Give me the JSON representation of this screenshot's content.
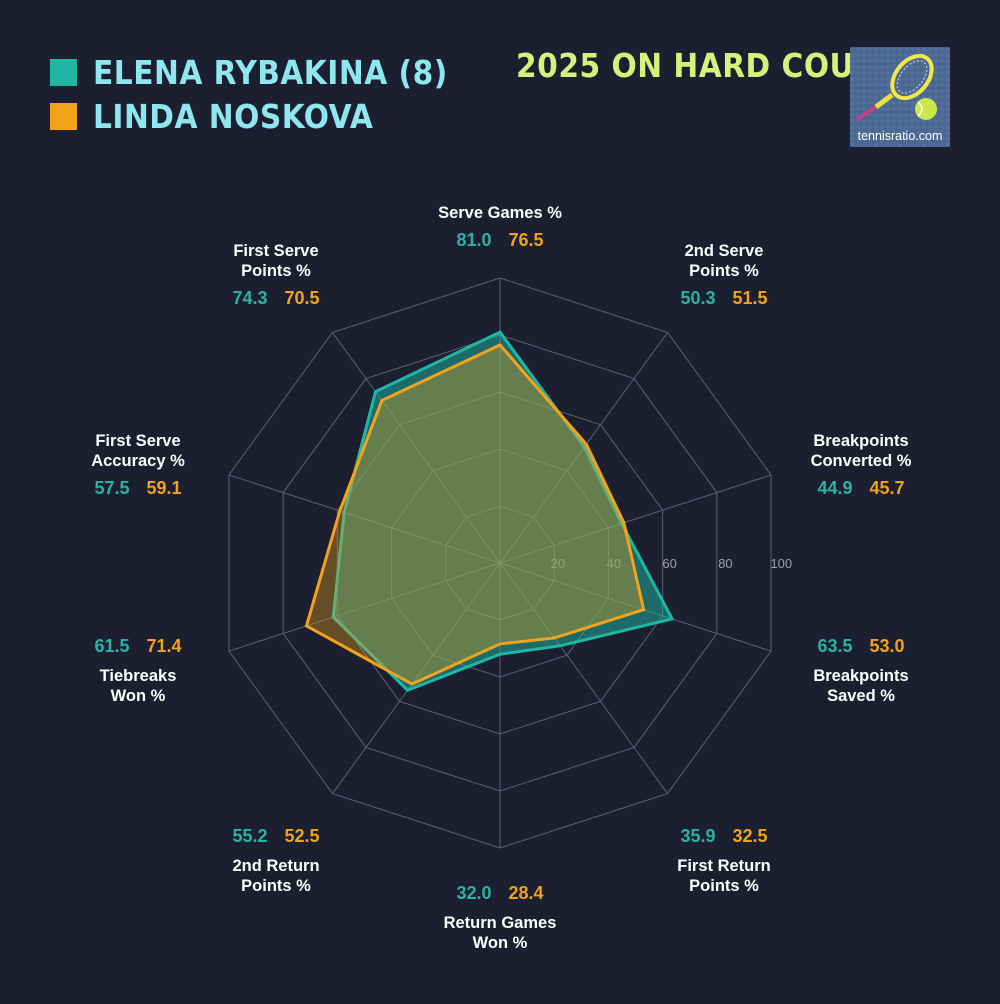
{
  "header": {
    "players": [
      {
        "name": "ELENA RYBAKINA (8)",
        "color": "#1fb6a6"
      },
      {
        "name": "LINDA NOSKOVA",
        "color": "#f2a21b"
      }
    ],
    "headline": "2025 ON HARD COURTS",
    "logo_text": "tennisratio.com"
  },
  "colors": {
    "background": "#1b1f30",
    "grid": "#5b6072",
    "label": "#ffffff",
    "tick": "#9aa0ae",
    "rybakina_value": "#2ab3a3",
    "noskova_value": "#f2a21b"
  },
  "chart_data": {
    "type": "radar",
    "title": "2025 ON HARD COURTS",
    "rmax": 100,
    "ticks": [
      20,
      40,
      60,
      80,
      100
    ],
    "grid": true,
    "legend_position": "top-left",
    "axes": [
      "Serve Games %",
      "2nd Serve Points %",
      "Breakpoints Converted %",
      "Breakpoints Saved %",
      "First Return Points %",
      "Return Games Won %",
      "2nd Return Points %",
      "Tiebreaks Won %",
      "First Serve Accuracy %",
      "First Serve Points %"
    ],
    "axis_label_lines": [
      [
        "Serve Games %"
      ],
      [
        "2nd Serve",
        "Points %"
      ],
      [
        "Breakpoints",
        "Converted %"
      ],
      [
        "Breakpoints",
        "Saved %"
      ],
      [
        "First Return",
        "Points %"
      ],
      [
        "Return Games",
        "Won %"
      ],
      [
        "2nd Return",
        "Points %"
      ],
      [
        "Tiebreaks",
        "Won %"
      ],
      [
        "First Serve",
        "Accuracy %"
      ],
      [
        "First Serve",
        "Points %"
      ]
    ],
    "series": [
      {
        "name": "ELENA RYBAKINA (8)",
        "color": "#1fb6a6",
        "values": [
          81.0,
          50.3,
          44.9,
          63.5,
          35.9,
          32.0,
          55.2,
          61.5,
          57.5,
          74.3
        ],
        "labels": [
          "81.0",
          "50.3",
          "44.9",
          "63.5",
          "35.9",
          "32.0",
          "55.2",
          "61.5",
          "57.5",
          "74.3"
        ]
      },
      {
        "name": "LINDA NOSKOVA",
        "color": "#f2a21b",
        "values": [
          76.5,
          51.5,
          45.7,
          53.0,
          32.5,
          28.4,
          52.5,
          71.4,
          59.1,
          70.5
        ],
        "labels": [
          "76.5",
          "51.5",
          "45.7",
          "53.0",
          "32.5",
          "28.4",
          "52.5",
          "71.4",
          "59.1",
          "70.5"
        ]
      }
    ]
  }
}
